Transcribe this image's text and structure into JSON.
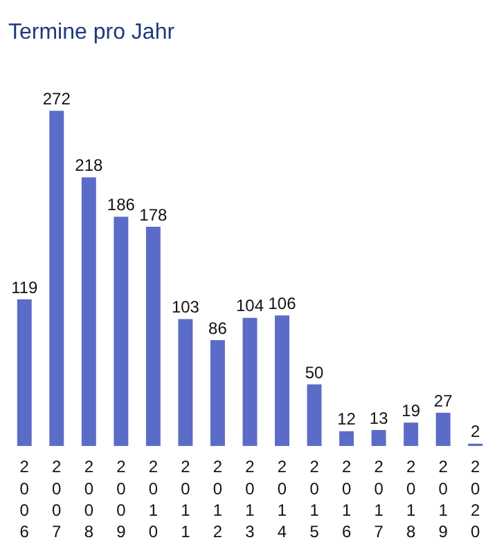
{
  "chart_data": {
    "type": "bar",
    "title": "Termine pro Jahr",
    "categories": [
      "2006",
      "2007",
      "2008",
      "2009",
      "2010",
      "2011",
      "2012",
      "2013",
      "2014",
      "2015",
      "2016",
      "2017",
      "2018",
      "2019",
      "2020"
    ],
    "values": [
      119,
      272,
      218,
      186,
      178,
      103,
      86,
      104,
      106,
      50,
      12,
      13,
      19,
      27,
      2
    ],
    "color": "#5b6cc8",
    "data_labels": true,
    "grid": false,
    "legend": false
  }
}
